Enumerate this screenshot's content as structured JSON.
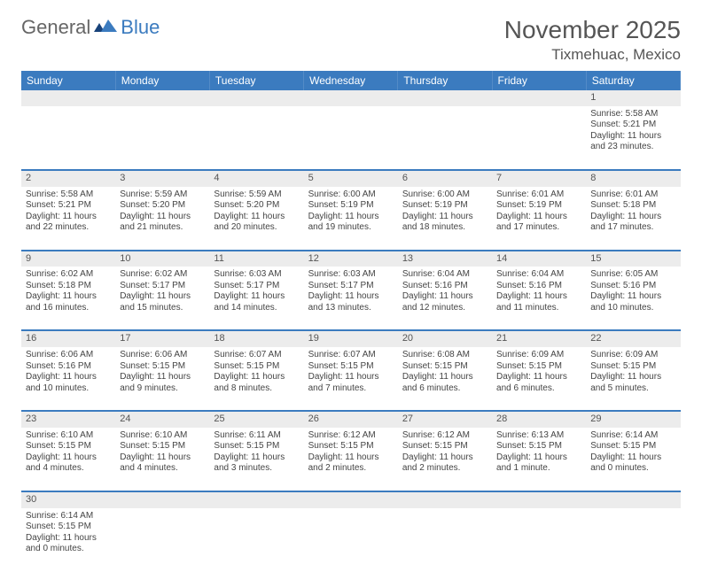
{
  "brand": {
    "part1": "General",
    "part2": "Blue"
  },
  "title": "November 2025",
  "location": "Tixmehuac, Mexico",
  "colors": {
    "header_bg": "#3b7bbf",
    "header_text": "#ffffff",
    "daynum_bg": "#ececec",
    "border": "#3b7bbf",
    "text": "#444444"
  },
  "day_headers": [
    "Sunday",
    "Monday",
    "Tuesday",
    "Wednesday",
    "Thursday",
    "Friday",
    "Saturday"
  ],
  "weeks": [
    {
      "nums": [
        "",
        "",
        "",
        "",
        "",
        "",
        "1"
      ],
      "cells": [
        null,
        null,
        null,
        null,
        null,
        null,
        {
          "sunrise": "5:58 AM",
          "sunset": "5:21 PM",
          "daylight": "11 hours and 23 minutes."
        }
      ]
    },
    {
      "nums": [
        "2",
        "3",
        "4",
        "5",
        "6",
        "7",
        "8"
      ],
      "cells": [
        {
          "sunrise": "5:58 AM",
          "sunset": "5:21 PM",
          "daylight": "11 hours and 22 minutes."
        },
        {
          "sunrise": "5:59 AM",
          "sunset": "5:20 PM",
          "daylight": "11 hours and 21 minutes."
        },
        {
          "sunrise": "5:59 AM",
          "sunset": "5:20 PM",
          "daylight": "11 hours and 20 minutes."
        },
        {
          "sunrise": "6:00 AM",
          "sunset": "5:19 PM",
          "daylight": "11 hours and 19 minutes."
        },
        {
          "sunrise": "6:00 AM",
          "sunset": "5:19 PM",
          "daylight": "11 hours and 18 minutes."
        },
        {
          "sunrise": "6:01 AM",
          "sunset": "5:19 PM",
          "daylight": "11 hours and 17 minutes."
        },
        {
          "sunrise": "6:01 AM",
          "sunset": "5:18 PM",
          "daylight": "11 hours and 17 minutes."
        }
      ]
    },
    {
      "nums": [
        "9",
        "10",
        "11",
        "12",
        "13",
        "14",
        "15"
      ],
      "cells": [
        {
          "sunrise": "6:02 AM",
          "sunset": "5:18 PM",
          "daylight": "11 hours and 16 minutes."
        },
        {
          "sunrise": "6:02 AM",
          "sunset": "5:17 PM",
          "daylight": "11 hours and 15 minutes."
        },
        {
          "sunrise": "6:03 AM",
          "sunset": "5:17 PM",
          "daylight": "11 hours and 14 minutes."
        },
        {
          "sunrise": "6:03 AM",
          "sunset": "5:17 PM",
          "daylight": "11 hours and 13 minutes."
        },
        {
          "sunrise": "6:04 AM",
          "sunset": "5:16 PM",
          "daylight": "11 hours and 12 minutes."
        },
        {
          "sunrise": "6:04 AM",
          "sunset": "5:16 PM",
          "daylight": "11 hours and 11 minutes."
        },
        {
          "sunrise": "6:05 AM",
          "sunset": "5:16 PM",
          "daylight": "11 hours and 10 minutes."
        }
      ]
    },
    {
      "nums": [
        "16",
        "17",
        "18",
        "19",
        "20",
        "21",
        "22"
      ],
      "cells": [
        {
          "sunrise": "6:06 AM",
          "sunset": "5:16 PM",
          "daylight": "11 hours and 10 minutes."
        },
        {
          "sunrise": "6:06 AM",
          "sunset": "5:15 PM",
          "daylight": "11 hours and 9 minutes."
        },
        {
          "sunrise": "6:07 AM",
          "sunset": "5:15 PM",
          "daylight": "11 hours and 8 minutes."
        },
        {
          "sunrise": "6:07 AM",
          "sunset": "5:15 PM",
          "daylight": "11 hours and 7 minutes."
        },
        {
          "sunrise": "6:08 AM",
          "sunset": "5:15 PM",
          "daylight": "11 hours and 6 minutes."
        },
        {
          "sunrise": "6:09 AM",
          "sunset": "5:15 PM",
          "daylight": "11 hours and 6 minutes."
        },
        {
          "sunrise": "6:09 AM",
          "sunset": "5:15 PM",
          "daylight": "11 hours and 5 minutes."
        }
      ]
    },
    {
      "nums": [
        "23",
        "24",
        "25",
        "26",
        "27",
        "28",
        "29"
      ],
      "cells": [
        {
          "sunrise": "6:10 AM",
          "sunset": "5:15 PM",
          "daylight": "11 hours and 4 minutes."
        },
        {
          "sunrise": "6:10 AM",
          "sunset": "5:15 PM",
          "daylight": "11 hours and 4 minutes."
        },
        {
          "sunrise": "6:11 AM",
          "sunset": "5:15 PM",
          "daylight": "11 hours and 3 minutes."
        },
        {
          "sunrise": "6:12 AM",
          "sunset": "5:15 PM",
          "daylight": "11 hours and 2 minutes."
        },
        {
          "sunrise": "6:12 AM",
          "sunset": "5:15 PM",
          "daylight": "11 hours and 2 minutes."
        },
        {
          "sunrise": "6:13 AM",
          "sunset": "5:15 PM",
          "daylight": "11 hours and 1 minute."
        },
        {
          "sunrise": "6:14 AM",
          "sunset": "5:15 PM",
          "daylight": "11 hours and 0 minutes."
        }
      ]
    },
    {
      "nums": [
        "30",
        "",
        "",
        "",
        "",
        "",
        ""
      ],
      "cells": [
        {
          "sunrise": "6:14 AM",
          "sunset": "5:15 PM",
          "daylight": "11 hours and 0 minutes."
        },
        null,
        null,
        null,
        null,
        null,
        null
      ]
    }
  ],
  "labels": {
    "sunrise": "Sunrise:",
    "sunset": "Sunset:",
    "daylight": "Daylight:"
  }
}
